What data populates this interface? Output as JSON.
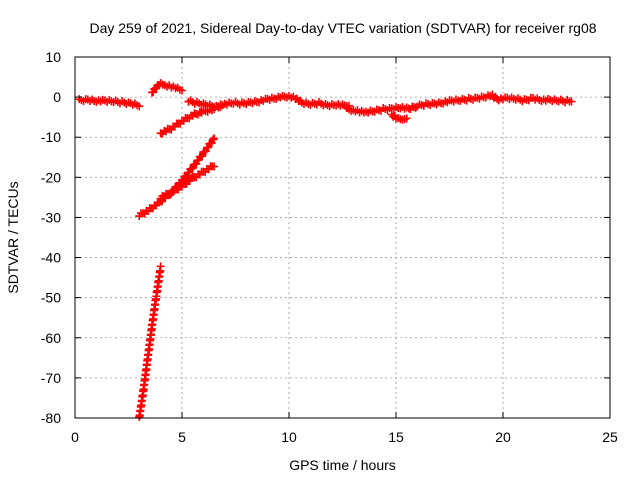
{
  "chart_data": {
    "type": "scatter",
    "title": "Day 259 of 2021, Sidereal Day-to-day VTEC variation (SDTVAR) for receiver rg08",
    "xlabel": "GPS time / hours",
    "ylabel": "SDTVAR / TECUs",
    "xlim": [
      0,
      25
    ],
    "ylim": [
      -80,
      10
    ],
    "xticks": [
      0,
      5,
      10,
      15,
      20,
      25
    ],
    "yticks": [
      10,
      0,
      -10,
      -20,
      -30,
      -40,
      -50,
      -60,
      -70,
      -80
    ],
    "xtick_labels": [
      "0",
      "5",
      "10",
      "15",
      "20",
      "25"
    ],
    "ytick_labels": [
      "10",
      "0",
      "-10",
      "-20",
      "-30",
      "-40",
      "-50",
      "-60",
      "-70",
      "-80"
    ],
    "grid": true,
    "marker": "plus",
    "color": "#ff0000",
    "series": [
      {
        "name": "arc-1",
        "x": [
          0.2,
          0.6,
          1.0,
          1.4,
          1.8,
          2.2,
          2.6,
          3.0
        ],
        "y": [
          -0.8,
          -0.6,
          -0.9,
          -1.0,
          -1.1,
          -1.3,
          -1.5,
          -2.0
        ]
      },
      {
        "name": "arc-2",
        "x": [
          3.6,
          3.8,
          4.0,
          4.2,
          4.5,
          4.8,
          5.0
        ],
        "y": [
          1.0,
          2.5,
          3.2,
          3.0,
          2.7,
          2.2,
          1.8
        ]
      },
      {
        "name": "arc-3",
        "x": [
          4.0,
          4.5,
          5.0,
          5.5,
          6.0,
          6.5
        ],
        "y": [
          -9.0,
          -7.8,
          -6.0,
          -4.5,
          -3.6,
          -3.0
        ]
      },
      {
        "name": "arc-4",
        "x": [
          5.3,
          5.7,
          6.1,
          6.5,
          6.8
        ],
        "y": [
          -1.0,
          -1.5,
          -1.8,
          -2.2,
          -2.6
        ]
      },
      {
        "name": "arc-5",
        "x": [
          6.7,
          7.0,
          7.4,
          7.8,
          8.2,
          8.6,
          9.0,
          9.4,
          9.7,
          10.0,
          10.3,
          10.6,
          11.0,
          11.4,
          11.8,
          12.2,
          12.6,
          12.8
        ],
        "y": [
          -2.0,
          -1.8,
          -1.5,
          -1.6,
          -1.3,
          -1.0,
          -0.6,
          -0.3,
          0.0,
          0.3,
          -0.2,
          -1.5,
          -1.8,
          -1.5,
          -2.0,
          -1.8,
          -2.2,
          -2.0
        ]
      },
      {
        "name": "arc-6",
        "x": [
          12.7,
          13.0,
          13.3,
          13.6,
          14.0,
          14.4,
          14.8,
          15.2,
          15.6,
          16.0,
          16.4,
          16.8,
          17.2,
          17.6,
          18.0,
          18.4,
          18.8,
          19.2,
          19.5
        ],
        "y": [
          -3.0,
          -3.2,
          -3.5,
          -3.8,
          -3.5,
          -3.0,
          -2.8,
          -2.5,
          -3.0,
          -2.2,
          -1.8,
          -1.6,
          -1.3,
          -1.0,
          -0.8,
          -0.5,
          -0.2,
          0.2,
          0.5
        ]
      },
      {
        "name": "arc-7",
        "x": [
          14.8,
          15.0,
          15.2,
          15.4,
          15.5
        ],
        "y": [
          -4.5,
          -5.2,
          -5.8,
          -5.5,
          -5.0
        ]
      },
      {
        "name": "arc-8",
        "x": [
          19.5,
          19.8,
          20.2,
          20.6,
          21.0,
          21.4,
          21.8,
          22.2,
          22.6,
          23.0,
          23.2
        ],
        "y": [
          0.3,
          -0.5,
          -0.3,
          -0.5,
          -0.8,
          -0.2,
          -0.7,
          -0.8,
          -0.9,
          -1.0,
          -1.1
        ]
      },
      {
        "name": "arc-9",
        "x": [
          3.0,
          3.5,
          4.0,
          4.5,
          5.0,
          5.5,
          6.0,
          6.5
        ],
        "y": [
          -29.5,
          -28.0,
          -26.0,
          -23.8,
          -20.8,
          -17.5,
          -14.0,
          -10.3
        ]
      },
      {
        "name": "arc-10",
        "x": [
          4.0,
          4.5,
          5.0,
          5.5,
          6.0,
          6.5
        ],
        "y": [
          -25.0,
          -23.8,
          -22.2,
          -20.2,
          -18.6,
          -17.0
        ]
      },
      {
        "name": "arc-11",
        "x": [
          3.0,
          3.2,
          3.4,
          3.6,
          3.8,
          4.0
        ],
        "y": [
          -80.0,
          -73.0,
          -65.0,
          -57.0,
          -49.5,
          -42.5
        ]
      }
    ]
  }
}
